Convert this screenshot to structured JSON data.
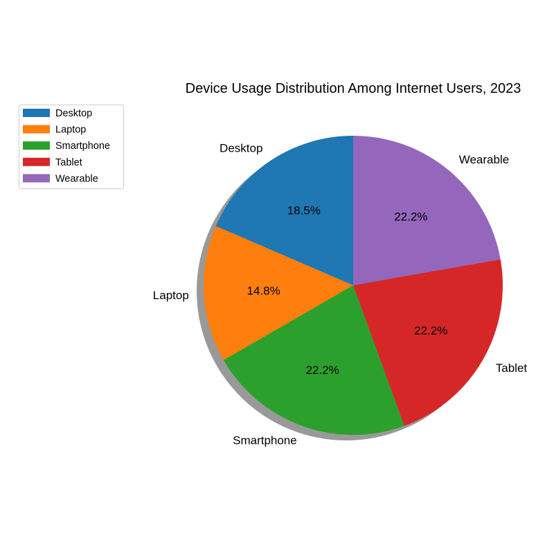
{
  "chart_data": {
    "type": "pie",
    "title": "Device Usage Distribution Among Internet Users, 2023",
    "categories": [
      "Desktop",
      "Laptop",
      "Smartphone",
      "Tablet",
      "Wearable"
    ],
    "values": [
      18.5,
      14.8,
      22.2,
      22.2,
      22.2
    ],
    "value_labels": [
      "18.5%",
      "14.8%",
      "22.2%",
      "22.2%",
      "22.2%"
    ],
    "colors": [
      "#1f77b4",
      "#ff7f0e",
      "#2ca02c",
      "#d62728",
      "#9467bd"
    ],
    "start_angle_deg": 90,
    "direction": "counterclockwise",
    "shadow": true,
    "legend": {
      "position": "upper-left",
      "entries": [
        "Desktop",
        "Laptop",
        "Smartphone",
        "Tablet",
        "Wearable"
      ]
    }
  }
}
